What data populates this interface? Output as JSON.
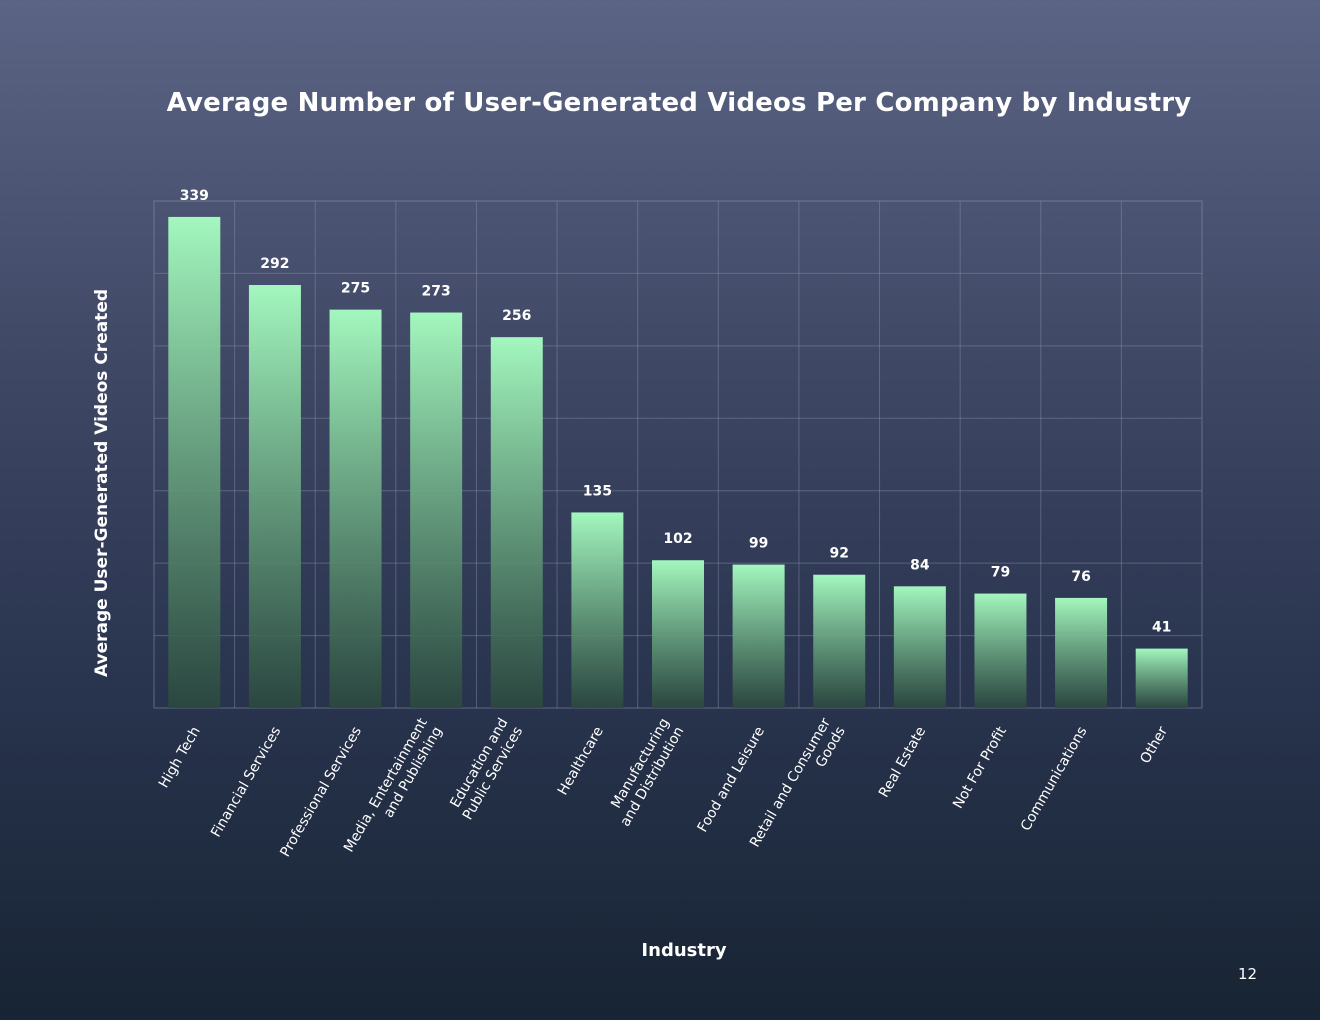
{
  "page": {
    "number": "12"
  },
  "colors": {
    "bar_top": "#a3f7be",
    "bar_bottom": "#2b4a3e",
    "grid": "#8b93ad"
  },
  "chart_data": {
    "type": "bar",
    "title": "Average Number of User-Generated Videos Per Company by Industry",
    "xlabel": "Industry",
    "ylabel": "Average User-Generated Videos Created",
    "grid": true,
    "ylim": [
      0,
      350
    ],
    "categories": [
      [
        "High Tech"
      ],
      [
        "Financial Services"
      ],
      [
        "Professional Services"
      ],
      [
        "Media, Entertainment",
        "and Publishing"
      ],
      [
        "Education and",
        "Public Services"
      ],
      [
        "Healthcare"
      ],
      [
        "Manufacturing",
        "and Distribution"
      ],
      [
        "Food and Leisure"
      ],
      [
        "Retail and Consumer",
        "Goods"
      ],
      [
        "Real Estate"
      ],
      [
        "Not For Profit"
      ],
      [
        "Communications"
      ],
      [
        "Other"
      ]
    ],
    "values": [
      339,
      292,
      275,
      273,
      256,
      135,
      102,
      99,
      92,
      84,
      79,
      76,
      41
    ]
  }
}
